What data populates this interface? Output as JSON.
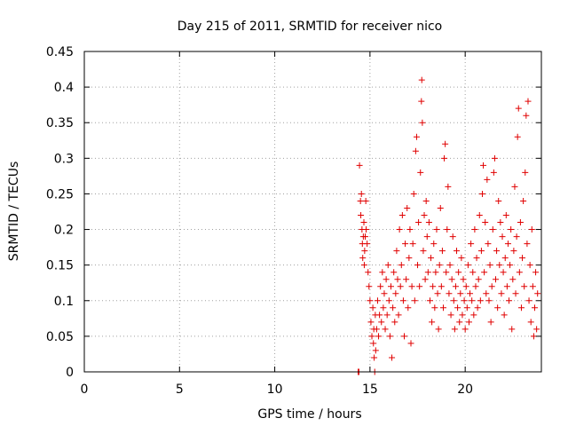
{
  "chart_data": {
    "type": "scatter",
    "title": "Day 215 of 2011, SRMTID for receiver nico",
    "xlabel": "GPS time / hours",
    "ylabel": "SRMTID / TECUs",
    "xlim": [
      0,
      24
    ],
    "ylim": [
      0,
      0.45
    ],
    "x_ticks": [
      0,
      5,
      10,
      15,
      20
    ],
    "x_tick_labels": [
      "0",
      "5",
      "10",
      "15",
      "20"
    ],
    "y_ticks": [
      0,
      0.05,
      0.1,
      0.15,
      0.2,
      0.25,
      0.3,
      0.35,
      0.4,
      0.45
    ],
    "y_tick_labels": [
      "0",
      "0.05",
      "0.1",
      "0.15",
      "0.2",
      "0.25",
      "0.3",
      "0.35",
      "0.4",
      "0.45"
    ],
    "grid": true,
    "marker": "+",
    "color": "#e00000",
    "series": [
      {
        "name": "SRMTID",
        "points": [
          [
            14.38,
            0.0
          ],
          [
            14.42,
            0.0
          ],
          [
            14.45,
            0.29
          ],
          [
            14.5,
            0.24
          ],
          [
            14.52,
            0.22
          ],
          [
            14.55,
            0.25
          ],
          [
            14.58,
            0.2
          ],
          [
            14.6,
            0.18
          ],
          [
            14.62,
            0.16
          ],
          [
            14.65,
            0.19
          ],
          [
            14.68,
            0.21
          ],
          [
            14.7,
            0.15
          ],
          [
            14.72,
            0.17
          ],
          [
            14.75,
            0.19
          ],
          [
            14.78,
            0.24
          ],
          [
            14.8,
            0.2
          ],
          [
            14.85,
            0.18
          ],
          [
            14.9,
            0.14
          ],
          [
            14.95,
            0.12
          ],
          [
            15.0,
            0.1
          ],
          [
            15.05,
            0.07
          ],
          [
            15.1,
            0.05
          ],
          [
            15.15,
            0.09
          ],
          [
            15.18,
            0.04
          ],
          [
            15.2,
            0.06
          ],
          [
            15.22,
            0.02
          ],
          [
            15.25,
            0.0
          ],
          [
            15.28,
            0.08
          ],
          [
            15.3,
            0.03
          ],
          [
            15.35,
            0.06
          ],
          [
            15.4,
            0.1
          ],
          [
            15.45,
            0.05
          ],
          [
            15.5,
            0.08
          ],
          [
            15.55,
            0.12
          ],
          [
            15.6,
            0.07
          ],
          [
            15.65,
            0.14
          ],
          [
            15.7,
            0.09
          ],
          [
            15.75,
            0.11
          ],
          [
            15.8,
            0.06
          ],
          [
            15.85,
            0.13
          ],
          [
            15.9,
            0.08
          ],
          [
            15.95,
            0.15
          ],
          [
            16.0,
            0.1
          ],
          [
            16.05,
            0.05
          ],
          [
            16.1,
            0.12
          ],
          [
            16.15,
            0.02
          ],
          [
            16.2,
            0.09
          ],
          [
            16.25,
            0.14
          ],
          [
            16.3,
            0.07
          ],
          [
            16.35,
            0.11
          ],
          [
            16.4,
            0.17
          ],
          [
            16.45,
            0.13
          ],
          [
            16.5,
            0.08
          ],
          [
            16.55,
            0.2
          ],
          [
            16.6,
            0.12
          ],
          [
            16.65,
            0.15
          ],
          [
            16.7,
            0.22
          ],
          [
            16.75,
            0.1
          ],
          [
            16.8,
            0.05
          ],
          [
            16.85,
            0.18
          ],
          [
            16.9,
            0.13
          ],
          [
            16.95,
            0.23
          ],
          [
            17.0,
            0.09
          ],
          [
            17.05,
            0.16
          ],
          [
            17.1,
            0.2
          ],
          [
            17.15,
            0.04
          ],
          [
            17.2,
            0.12
          ],
          [
            17.25,
            0.18
          ],
          [
            17.3,
            0.25
          ],
          [
            17.35,
            0.1
          ],
          [
            17.4,
            0.31
          ],
          [
            17.45,
            0.33
          ],
          [
            17.5,
            0.15
          ],
          [
            17.55,
            0.21
          ],
          [
            17.6,
            0.12
          ],
          [
            17.65,
            0.28
          ],
          [
            17.7,
            0.38
          ],
          [
            17.72,
            0.41
          ],
          [
            17.75,
            0.35
          ],
          [
            17.8,
            0.17
          ],
          [
            17.85,
            0.22
          ],
          [
            17.9,
            0.13
          ],
          [
            17.95,
            0.24
          ],
          [
            18.0,
            0.19
          ],
          [
            18.05,
            0.14
          ],
          [
            18.1,
            0.21
          ],
          [
            18.15,
            0.1
          ],
          [
            18.2,
            0.16
          ],
          [
            18.25,
            0.07
          ],
          [
            18.3,
            0.12
          ],
          [
            18.35,
            0.18
          ],
          [
            18.4,
            0.09
          ],
          [
            18.45,
            0.14
          ],
          [
            18.5,
            0.2
          ],
          [
            18.55,
            0.11
          ],
          [
            18.6,
            0.06
          ],
          [
            18.65,
            0.15
          ],
          [
            18.7,
            0.23
          ],
          [
            18.75,
            0.12
          ],
          [
            18.8,
            0.17
          ],
          [
            18.85,
            0.09
          ],
          [
            18.9,
            0.3
          ],
          [
            18.95,
            0.32
          ],
          [
            19.0,
            0.14
          ],
          [
            19.05,
            0.2
          ],
          [
            19.1,
            0.26
          ],
          [
            19.15,
            0.11
          ],
          [
            19.2,
            0.15
          ],
          [
            19.25,
            0.08
          ],
          [
            19.3,
            0.13
          ],
          [
            19.35,
            0.19
          ],
          [
            19.4,
            0.1
          ],
          [
            19.45,
            0.06
          ],
          [
            19.5,
            0.12
          ],
          [
            19.55,
            0.17
          ],
          [
            19.6,
            0.09
          ],
          [
            19.65,
            0.14
          ],
          [
            19.7,
            0.07
          ],
          [
            19.75,
            0.11
          ],
          [
            19.8,
            0.16
          ],
          [
            19.85,
            0.08
          ],
          [
            19.9,
            0.13
          ],
          [
            19.95,
            0.1
          ],
          [
            20.0,
            0.06
          ],
          [
            20.05,
            0.12
          ],
          [
            20.1,
            0.09
          ],
          [
            20.15,
            0.15
          ],
          [
            20.2,
            0.07
          ],
          [
            20.25,
            0.11
          ],
          [
            20.3,
            0.18
          ],
          [
            20.35,
            0.1
          ],
          [
            20.4,
            0.14
          ],
          [
            20.45,
            0.08
          ],
          [
            20.5,
            0.2
          ],
          [
            20.55,
            0.12
          ],
          [
            20.6,
            0.16
          ],
          [
            20.65,
            0.09
          ],
          [
            20.7,
            0.13
          ],
          [
            20.75,
            0.22
          ],
          [
            20.8,
            0.1
          ],
          [
            20.85,
            0.17
          ],
          [
            20.9,
            0.25
          ],
          [
            20.95,
            0.29
          ],
          [
            21.0,
            0.14
          ],
          [
            21.05,
            0.21
          ],
          [
            21.1,
            0.11
          ],
          [
            21.15,
            0.27
          ],
          [
            21.2,
            0.18
          ],
          [
            21.25,
            0.1
          ],
          [
            21.3,
            0.15
          ],
          [
            21.35,
            0.07
          ],
          [
            21.4,
            0.12
          ],
          [
            21.45,
            0.2
          ],
          [
            21.5,
            0.28
          ],
          [
            21.55,
            0.3
          ],
          [
            21.6,
            0.13
          ],
          [
            21.65,
            0.17
          ],
          [
            21.7,
            0.09
          ],
          [
            21.75,
            0.24
          ],
          [
            21.8,
            0.15
          ],
          [
            21.85,
            0.21
          ],
          [
            21.9,
            0.11
          ],
          [
            21.95,
            0.19
          ],
          [
            22.0,
            0.14
          ],
          [
            22.05,
            0.08
          ],
          [
            22.1,
            0.16
          ],
          [
            22.15,
            0.22
          ],
          [
            22.2,
            0.12
          ],
          [
            22.25,
            0.18
          ],
          [
            22.3,
            0.1
          ],
          [
            22.35,
            0.15
          ],
          [
            22.4,
            0.2
          ],
          [
            22.45,
            0.06
          ],
          [
            22.5,
            0.13
          ],
          [
            22.55,
            0.17
          ],
          [
            22.6,
            0.26
          ],
          [
            22.65,
            0.11
          ],
          [
            22.7,
            0.19
          ],
          [
            22.75,
            0.33
          ],
          [
            22.8,
            0.37
          ],
          [
            22.85,
            0.14
          ],
          [
            22.9,
            0.21
          ],
          [
            22.95,
            0.09
          ],
          [
            23.0,
            0.16
          ],
          [
            23.05,
            0.24
          ],
          [
            23.1,
            0.12
          ],
          [
            23.15,
            0.28
          ],
          [
            23.2,
            0.36
          ],
          [
            23.25,
            0.18
          ],
          [
            23.3,
            0.38
          ],
          [
            23.35,
            0.1
          ],
          [
            23.4,
            0.15
          ],
          [
            23.45,
            0.07
          ],
          [
            23.5,
            0.2
          ],
          [
            23.55,
            0.12
          ],
          [
            23.6,
            0.05
          ],
          [
            23.65,
            0.09
          ],
          [
            23.7,
            0.14
          ],
          [
            23.75,
            0.06
          ],
          [
            23.8,
            0.11
          ]
        ]
      }
    ]
  }
}
